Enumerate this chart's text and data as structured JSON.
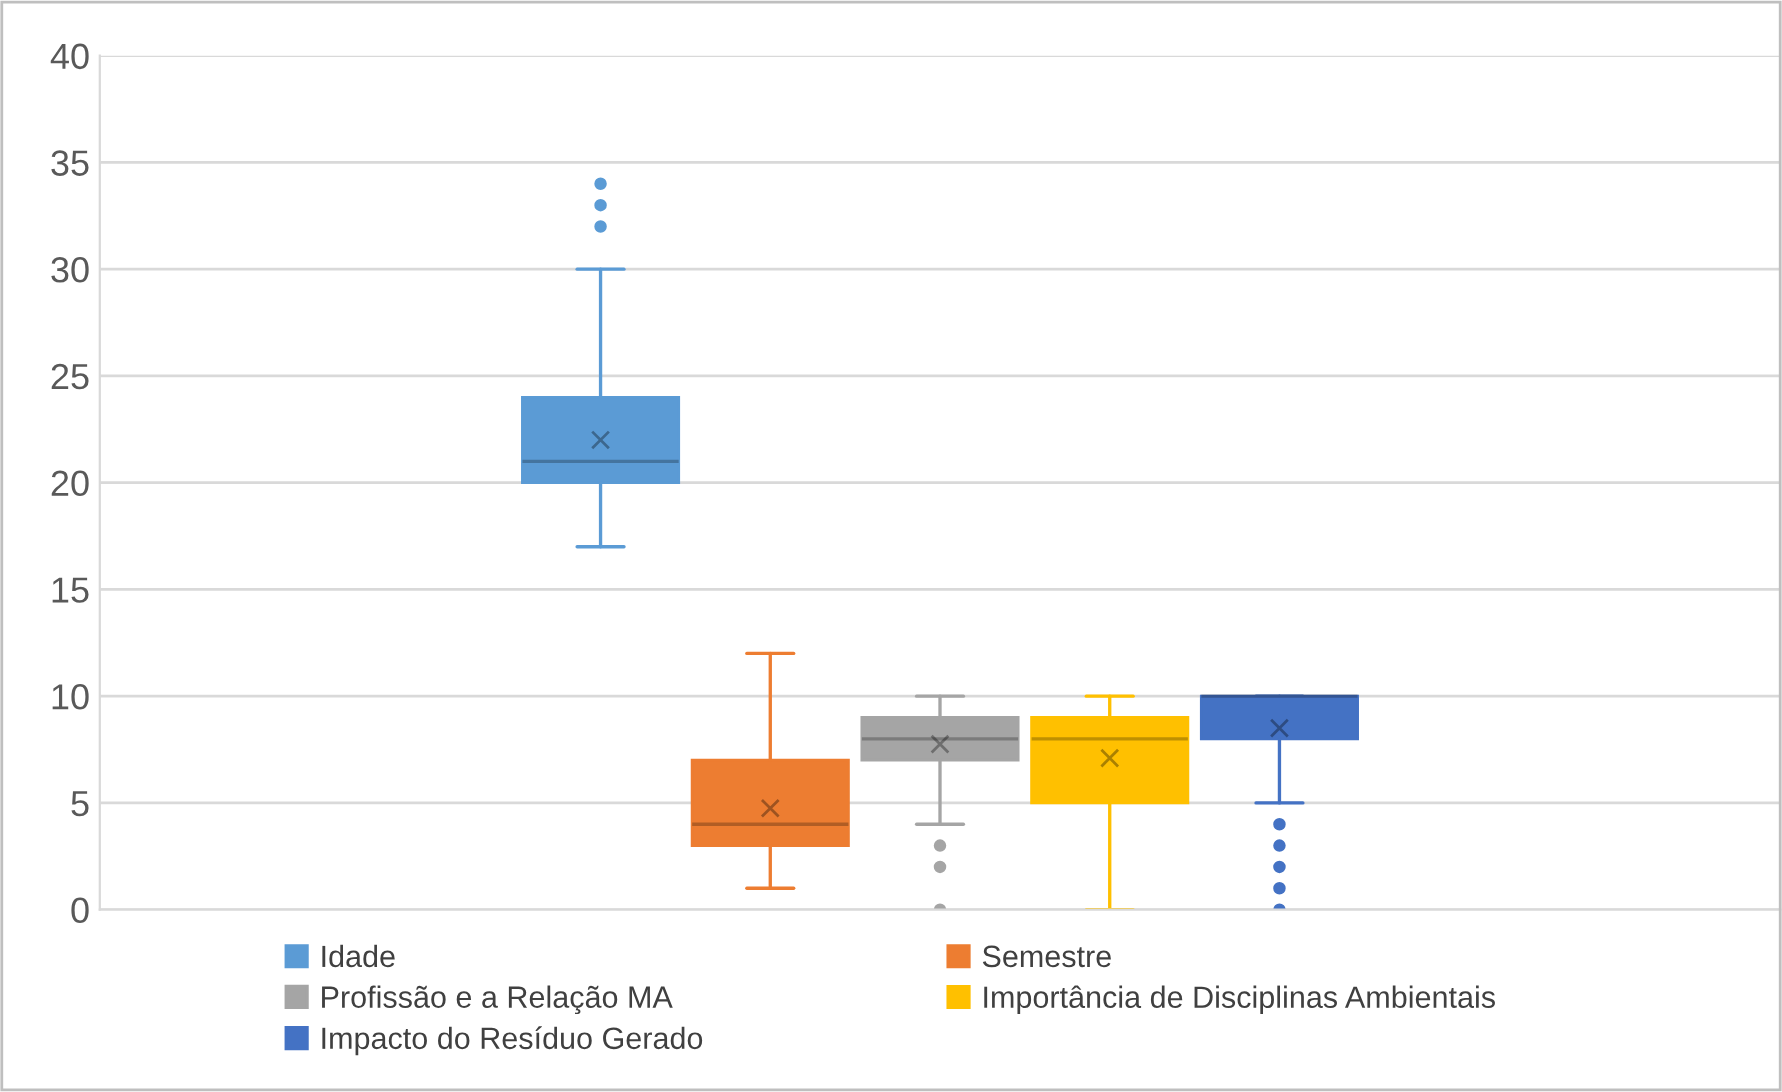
{
  "chart_data": {
    "type": "box",
    "categories": [
      null
    ],
    "series": [
      {
        "name": "Idade",
        "color": "#5b9bd5",
        "boxes": [
          {
            "low": 17,
            "q1": 20,
            "median": 21,
            "q3": 24,
            "high": 30,
            "mean": 22,
            "outliers": [
              32,
              33,
              34
            ]
          }
        ]
      },
      {
        "name": "Semestre",
        "color": "#ed7d31",
        "boxes": [
          {
            "low": 1,
            "q1": 3,
            "median": 4,
            "q3": 7,
            "high": 12,
            "mean": 4.75
          }
        ]
      },
      {
        "name": "Profissão e a Relação MA",
        "color": "#a5a5a5",
        "boxes": [
          {
            "low": 4,
            "q1": 7,
            "median": 8,
            "q3": 9,
            "high": 10,
            "mean": 7.75,
            "outliers": [
              3,
              2,
              0
            ]
          }
        ]
      },
      {
        "name": "Importância de Disciplinas Ambientais",
        "color": "#ffc000",
        "boxes": [
          {
            "low": 0,
            "q1": 5,
            "median": 8,
            "q3": 9,
            "high": 10,
            "mean": 7.1
          }
        ]
      },
      {
        "name": "Impacto do Resíduo Gerado",
        "color": "#4472c4",
        "boxes": [
          {
            "low": 5,
            "q1": 8,
            "median": 10,
            "q3": 10,
            "high": 10,
            "mean": 8.5,
            "outliers": [
              4,
              3,
              2,
              1,
              0
            ]
          }
        ]
      }
    ],
    "ylim": [
      0,
      40
    ],
    "yticks": [
      0,
      5,
      10,
      15,
      20,
      25,
      30,
      35,
      40
    ],
    "grid": "y",
    "legend": "bottom"
  }
}
